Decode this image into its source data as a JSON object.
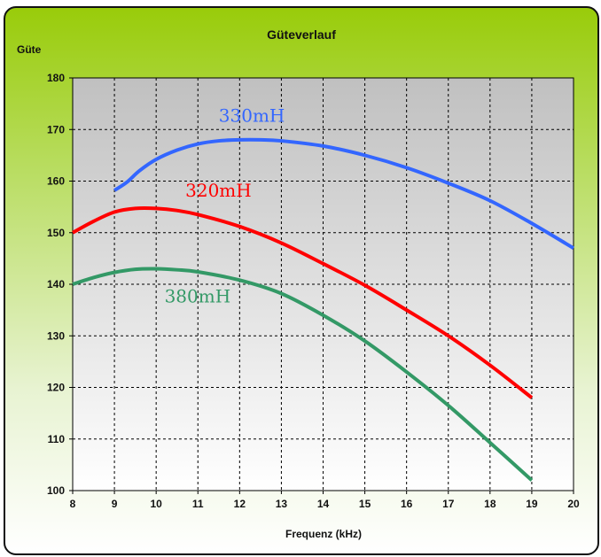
{
  "chart_data": {
    "type": "line",
    "title": "Güteverlauf",
    "xlabel": "Frequenz (kHz)",
    "ylabel": "Güte",
    "xlim": [
      8,
      20
    ],
    "ylim": [
      100,
      180
    ],
    "xticks": [
      8,
      9,
      10,
      11,
      12,
      13,
      14,
      15,
      16,
      17,
      18,
      19,
      20
    ],
    "yticks": [
      100,
      110,
      120,
      130,
      140,
      150,
      160,
      170,
      180
    ],
    "grid": true,
    "series": [
      {
        "name": "330mH",
        "color": "#3366ff",
        "label_at": [
          11.5,
          171.5
        ],
        "x": [
          9,
          9.3,
          9.6,
          10,
          10.5,
          11,
          11.5,
          12,
          12.5,
          13,
          14,
          15,
          16,
          17,
          18,
          19,
          20
        ],
        "y": [
          158.2,
          159.8,
          162,
          164.2,
          166,
          167.2,
          167.8,
          168,
          168,
          167.8,
          166.8,
          165,
          162.6,
          159.6,
          156.2,
          151.8,
          147
        ]
      },
      {
        "name": "320mH",
        "color": "#ff0000",
        "label_at": [
          10.7,
          157
        ],
        "x": [
          8,
          8.5,
          9,
          9.5,
          10,
          10.5,
          11,
          12,
          13,
          14,
          15,
          16,
          17,
          18,
          19
        ],
        "y": [
          150,
          152.2,
          154,
          154.7,
          154.7,
          154.3,
          153.5,
          151.2,
          148,
          144,
          139.8,
          135,
          130,
          124.3,
          118
        ]
      },
      {
        "name": "380mH",
        "color": "#339966",
        "label_at": [
          10.2,
          136.5
        ],
        "x": [
          8,
          8.5,
          9,
          9.5,
          10,
          10.5,
          11,
          12,
          13,
          14,
          15,
          16,
          17,
          18,
          19
        ],
        "y": [
          140,
          141.3,
          142.3,
          142.9,
          143,
          142.8,
          142.4,
          140.8,
          138.2,
          134,
          129,
          123,
          116.5,
          109.3,
          102
        ]
      }
    ]
  }
}
